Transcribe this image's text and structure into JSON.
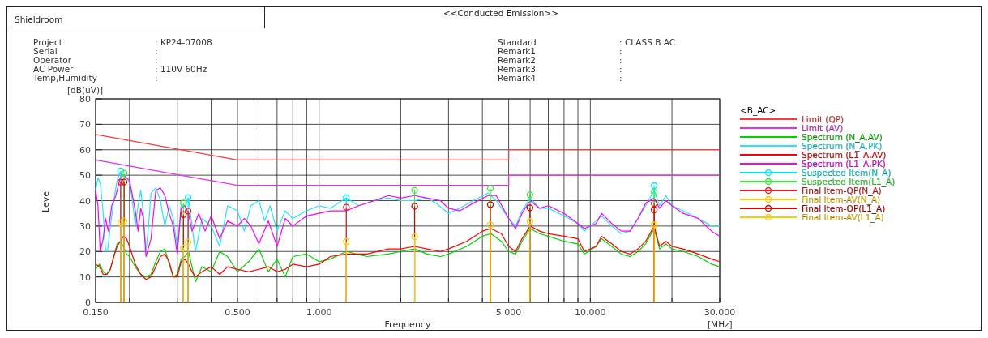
{
  "chart_data": {
    "type": "line",
    "title": "<<Conducted Emission>>",
    "xlabel": "Frequency",
    "ylabel": "Level",
    "legend_title": "<B_AC>",
    "annotations": [
      "Shieldroom",
      "Project",
      "Serial",
      "Operator",
      "AC Power",
      "Temp,Humidity",
      ": KP24-07008",
      ":",
      ":",
      ": 110V 60Hz",
      ":",
      "Standard",
      "Remark1",
      "Remark2",
      "Remark3",
      "Remark4",
      ": CLASS B AC",
      ":",
      ":",
      ":",
      ":",
      "[dB(uV)]",
      "[MHz]"
    ],
    "log": "x",
    "xlim": [
      0.15,
      30
    ],
    "xticks": [
      {
        "value": 0.15,
        "label": "0.150"
      },
      {
        "value": 0.2,
        "label": null
      },
      {
        "value": 0.3,
        "label": null
      },
      {
        "value": 0.4,
        "label": null
      },
      {
        "value": 0.5,
        "label": "0.500"
      },
      {
        "value": 0.6,
        "label": null
      },
      {
        "value": 0.7,
        "label": null
      },
      {
        "value": 0.8,
        "label": null
      },
      {
        "value": 0.9,
        "label": null
      },
      {
        "value": 1,
        "label": "1.000"
      },
      {
        "value": 2,
        "label": null
      },
      {
        "value": 3,
        "label": null
      },
      {
        "value": 4,
        "label": null
      },
      {
        "value": 5,
        "label": "5.000"
      },
      {
        "value": 6,
        "label": null
      },
      {
        "value": 7,
        "label": null
      },
      {
        "value": 8,
        "label": null
      },
      {
        "value": 9,
        "label": null
      },
      {
        "value": 10,
        "label": "10.000"
      },
      {
        "value": 20,
        "label": null
      },
      {
        "value": 30,
        "label": "30.000"
      }
    ],
    "ylim": [
      0,
      80
    ],
    "yticks": [
      0,
      10,
      20,
      30,
      40,
      50,
      60,
      70,
      80
    ],
    "grid": true,
    "legend": "right",
    "line_style": "solid",
    "series": [
      {
        "name": "Limit (QP)",
        "color": "#ff3838",
        "x": [
          0.15,
          0.5,
          5,
          5,
          30
        ],
        "values": [
          66,
          56,
          56,
          60,
          60
        ]
      },
      {
        "name": "Limit (AV)",
        "color": "#e830e8",
        "x": [
          0.15,
          0.5,
          5,
          5,
          30
        ],
        "values": [
          56,
          46,
          46,
          50,
          50
        ]
      },
      {
        "name": "Spectrum (N_A,AV)",
        "color": "#00d400",
        "x": [
          0.15,
          0.155,
          0.16,
          0.165,
          0.17,
          0.175,
          0.18,
          0.185,
          0.19,
          0.195,
          0.2,
          0.21,
          0.22,
          0.23,
          0.24,
          0.25,
          0.26,
          0.27,
          0.28,
          0.29,
          0.3,
          0.31,
          0.32,
          0.33,
          0.34,
          0.35,
          0.37,
          0.4,
          0.43,
          0.46,
          0.5,
          0.55,
          0.6,
          0.65,
          0.7,
          0.75,
          0.8,
          0.9,
          1.0,
          1.1,
          1.26,
          1.5,
          1.8,
          2.0,
          2.25,
          2.5,
          2.8,
          3.0,
          3.5,
          4.0,
          4.3,
          4.7,
          5.0,
          5.3,
          5.6,
          6.0,
          6.5,
          7.0,
          8.0,
          9.0,
          9.5,
          10.5,
          11,
          12,
          13,
          14,
          15,
          16,
          17.2,
          18,
          19,
          20,
          22,
          25,
          28,
          30
        ],
        "values": [
          13,
          15,
          12,
          11,
          13,
          18,
          23,
          24,
          22,
          19,
          18,
          14,
          11,
          10,
          11,
          16,
          20,
          21,
          15,
          10,
          11,
          17,
          18,
          20,
          14,
          8,
          14,
          12,
          20,
          18,
          12,
          16,
          21,
          12,
          17,
          10,
          18,
          19,
          16,
          17,
          20,
          18,
          19,
          20,
          21,
          19,
          18,
          19,
          22,
          26,
          27,
          24,
          20,
          19,
          24,
          29,
          27,
          26,
          24,
          23,
          19,
          22,
          25,
          22,
          19,
          18,
          20,
          23,
          29,
          21,
          23,
          21,
          20,
          18,
          15,
          14
        ]
      },
      {
        "name": "Spectrum (N_A,PK)",
        "color": "#22e6ff",
        "x": [
          0.15,
          0.153,
          0.156,
          0.16,
          0.163,
          0.166,
          0.17,
          0.175,
          0.18,
          0.185,
          0.19,
          0.195,
          0.2,
          0.205,
          0.21,
          0.215,
          0.22,
          0.225,
          0.23,
          0.235,
          0.24,
          0.25,
          0.26,
          0.27,
          0.28,
          0.29,
          0.3,
          0.31,
          0.32,
          0.33,
          0.34,
          0.35,
          0.37,
          0.4,
          0.43,
          0.46,
          0.5,
          0.53,
          0.56,
          0.6,
          0.63,
          0.66,
          0.7,
          0.75,
          0.8,
          0.9,
          1.0,
          1.1,
          1.26,
          1.4,
          1.6,
          1.8,
          2.0,
          2.25,
          2.5,
          2.7,
          3.0,
          3.3,
          3.7,
          4.2,
          4.5,
          5.0,
          5.3,
          5.6,
          6.0,
          6.5,
          7.0,
          8.0,
          9.0,
          9.5,
          10.5,
          11,
          12,
          13,
          14,
          15,
          16,
          17.2,
          18,
          19,
          20,
          22,
          25,
          28,
          30
        ],
        "values": [
          44,
          49,
          47,
          35,
          21,
          20,
          30,
          40,
          48,
          51,
          50,
          49,
          47,
          40,
          30,
          38,
          44,
          35,
          20,
          30,
          43,
          45,
          40,
          30,
          38,
          33,
          22,
          38,
          37,
          41,
          30,
          20,
          33,
          30,
          22,
          38,
          36,
          28,
          38,
          40,
          32,
          38,
          28,
          36,
          33,
          36,
          38,
          37,
          41,
          38,
          40,
          41,
          40,
          40,
          41,
          39,
          35,
          37,
          40,
          43,
          40,
          33,
          30,
          36,
          41,
          37,
          37,
          34,
          31,
          28,
          32,
          34,
          30,
          27,
          28,
          33,
          38,
          44,
          38,
          42,
          38,
          36,
          33,
          30,
          30
        ]
      },
      {
        "name": "Spectrum (L1_A,AV)",
        "color": "#ff0000",
        "x": [
          0.15,
          0.155,
          0.16,
          0.165,
          0.17,
          0.175,
          0.18,
          0.185,
          0.19,
          0.195,
          0.2,
          0.21,
          0.22,
          0.23,
          0.24,
          0.25,
          0.26,
          0.27,
          0.28,
          0.29,
          0.3,
          0.31,
          0.32,
          0.33,
          0.34,
          0.35,
          0.37,
          0.4,
          0.43,
          0.46,
          0.5,
          0.55,
          0.6,
          0.65,
          0.7,
          0.75,
          0.8,
          0.9,
          1.0,
          1.1,
          1.26,
          1.5,
          1.8,
          2.0,
          2.25,
          2.5,
          2.8,
          3.0,
          3.5,
          4.0,
          4.3,
          4.7,
          5.0,
          5.3,
          5.6,
          6.0,
          6.5,
          7.0,
          8.0,
          9.0,
          9.5,
          10.5,
          11,
          12,
          13,
          14,
          15,
          16,
          17.2,
          18,
          19,
          20,
          22,
          25,
          28,
          30
        ],
        "values": [
          15,
          14,
          11,
          11,
          13,
          18,
          22,
          24,
          26,
          25,
          22,
          15,
          11,
          9,
          10,
          14,
          18,
          19,
          16,
          10,
          10,
          16,
          17,
          15,
          12,
          10,
          12,
          14,
          11,
          14,
          13,
          12,
          13,
          14,
          12,
          13,
          15,
          14,
          15,
          18,
          19,
          19,
          21,
          21,
          22,
          21,
          20,
          21,
          24,
          28,
          29,
          27,
          22,
          20,
          25,
          30,
          28,
          27,
          26,
          25,
          20,
          22,
          26,
          23,
          20,
          19,
          21,
          24,
          30,
          22,
          24,
          22,
          21,
          19,
          17,
          16
        ]
      },
      {
        "name": "Spectrum (L1_A,PK)",
        "color": "#ff00ff",
        "x": [
          0.15,
          0.153,
          0.156,
          0.16,
          0.163,
          0.167,
          0.172,
          0.178,
          0.185,
          0.19,
          0.2,
          0.205,
          0.21,
          0.215,
          0.22,
          0.225,
          0.23,
          0.24,
          0.25,
          0.26,
          0.27,
          0.28,
          0.29,
          0.3,
          0.31,
          0.32,
          0.33,
          0.34,
          0.36,
          0.38,
          0.4,
          0.43,
          0.46,
          0.5,
          0.53,
          0.56,
          0.6,
          0.65,
          0.7,
          0.75,
          0.8,
          0.9,
          1.0,
          1.1,
          1.26,
          1.4,
          1.6,
          1.8,
          2.0,
          2.25,
          2.5,
          2.8,
          3.0,
          3.3,
          3.7,
          4.2,
          4.5,
          5.0,
          5.3,
          5.6,
          6.0,
          6.5,
          7.0,
          8.0,
          9.0,
          9.5,
          10.5,
          11,
          12,
          13,
          14,
          15,
          16,
          17.2,
          18,
          19,
          20,
          22,
          25,
          28,
          30
        ],
        "values": [
          44,
          38,
          20,
          25,
          33,
          28,
          38,
          42,
          49,
          50,
          48,
          42,
          36,
          28,
          37,
          33,
          18,
          25,
          44,
          45,
          42,
          35,
          30,
          19,
          37,
          38,
          35,
          28,
          35,
          28,
          34,
          25,
          32,
          30,
          33,
          30,
          23,
          32,
          22,
          33,
          30,
          34,
          35,
          36,
          36,
          38,
          40,
          42,
          41,
          42,
          41,
          40,
          37,
          36,
          39,
          42,
          42,
          33,
          29,
          35,
          40,
          37,
          38,
          35,
          31,
          29,
          31,
          35,
          31,
          28,
          28,
          33,
          39,
          41,
          37,
          40,
          38,
          35,
          33,
          28,
          26
        ]
      },
      {
        "type": "lollipop",
        "marker": "circle",
        "name": "Suspected Item(N_A)",
        "color": "#00e8ff",
        "x": [
          0.1855,
          0.329,
          1.26,
          17.2
        ],
        "values": [
          51.7,
          41.2,
          41.2,
          45.9
        ]
      },
      {
        "type": "lollipop",
        "marker": "circle",
        "name": "Suspected Item(L1_A)",
        "color": "#30f030",
        "x": [
          0.191,
          0.316,
          2.25,
          4.28,
          5.99,
          17.2
        ],
        "values": [
          50.8,
          39.1,
          44.1,
          44.8,
          42.3,
          43.3
        ]
      },
      {
        "type": "lollipop",
        "marker": "circle",
        "name": "Final Item-QP(N_A)",
        "color": "#f01818",
        "x": [
          0.1855,
          0.329,
          1.26,
          17.2
        ],
        "values": [
          47.3,
          35.9,
          37.4,
          38.9
        ]
      },
      {
        "type": "lollipop",
        "marker": "circle",
        "name": "Final Item-AV(N_A)",
        "color": "#ffcc00",
        "x": [
          0.1855,
          0.329,
          1.26,
          17.2
        ],
        "values": [
          31.2,
          23.7,
          23.9,
          30.5
        ]
      },
      {
        "type": "lollipop",
        "marker": "circle",
        "name": "Final Item-QP(L1_A)",
        "color": "#d80000",
        "x": [
          0.191,
          0.316,
          2.25,
          4.28,
          5.99,
          17.2
        ],
        "values": [
          47.3,
          34.5,
          37.8,
          38.4,
          37.2,
          36.4
        ]
      },
      {
        "type": "lollipop",
        "marker": "circle",
        "name": "Final Item-AV(L1_A)",
        "color": "#ffcc00",
        "x": [
          0.191,
          0.316,
          2.25,
          4.28,
          5.99,
          17.2
        ],
        "values": [
          32.0,
          21.4,
          25.8,
          30.5,
          31.8,
          30.5
        ]
      }
    ]
  }
}
